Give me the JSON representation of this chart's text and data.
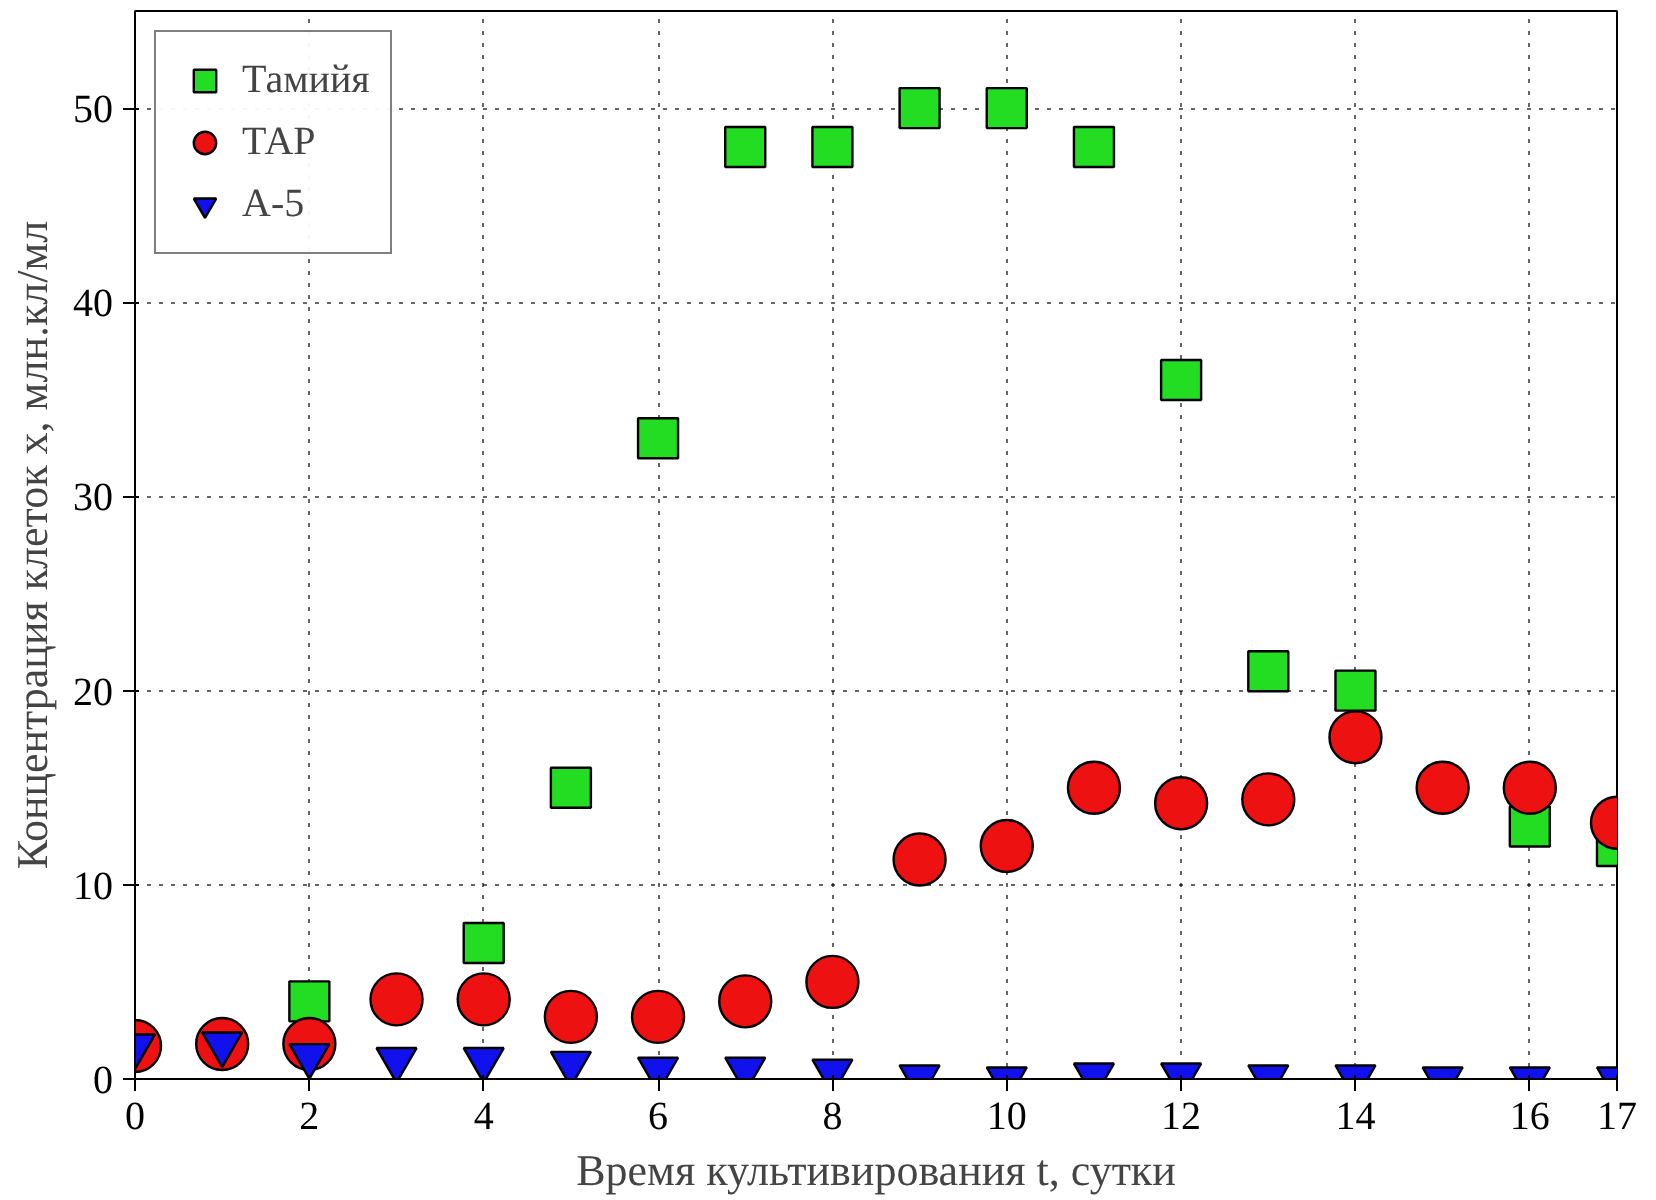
{
  "chart_data": {
    "type": "scatter",
    "xlabel": "Время культивирования t, сутки",
    "ylabel": "Концентрация клеток x, млн.кл/мл",
    "x": [
      0,
      1,
      2,
      3,
      4,
      5,
      6,
      7,
      8,
      9,
      10,
      11,
      12,
      13,
      14,
      15,
      16,
      17
    ],
    "xlim": [
      0,
      17
    ],
    "xticks": [
      0,
      2,
      4,
      6,
      8,
      10,
      12,
      14,
      16,
      17
    ],
    "ylim": [
      0,
      55
    ],
    "yticks": [
      0,
      10,
      20,
      30,
      40,
      50
    ],
    "grid": true,
    "legend": "top left",
    "series": [
      {
        "name": "Тамийя",
        "color": "#22dd22",
        "marker": "square",
        "values": [
          null,
          null,
          4,
          null,
          7,
          15,
          33,
          48,
          48,
          50,
          50,
          48,
          36,
          21,
          20,
          null,
          13,
          12
        ]
      },
      {
        "name": "ТАР",
        "color": "#ee1111",
        "marker": "circle",
        "values": [
          1.7,
          1.8,
          1.8,
          4.1,
          4.1,
          3.2,
          3.2,
          4,
          5,
          11.3,
          12,
          15,
          14.2,
          14.4,
          17.6,
          15,
          15,
          13.2
        ]
      },
      {
        "name": "А-5",
        "color": "#1111ee",
        "marker": "triangle",
        "values": [
          1.7,
          1.8,
          1.2,
          1,
          1,
          0.8,
          0.5,
          0.5,
          0.4,
          0.1,
          0,
          0.2,
          0.2,
          0.1,
          0.1,
          0,
          0,
          0
        ]
      }
    ]
  }
}
